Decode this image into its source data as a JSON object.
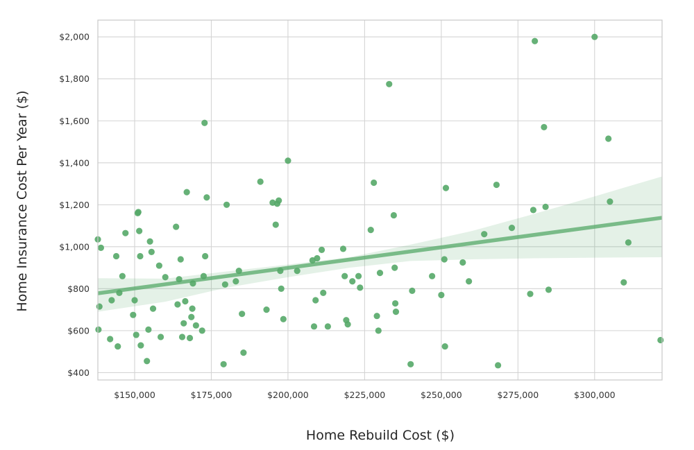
{
  "chart_data": {
    "type": "scatter",
    "title": "",
    "xlabel": "Home Rebuild Cost ($)",
    "ylabel": "Home Insurance Cost Per Year ($)",
    "xlim": [
      138000,
      322000
    ],
    "ylim": [
      365,
      2080
    ],
    "grid": true,
    "legend": "none",
    "x_ticks": [
      150000,
      175000,
      200000,
      225000,
      250000,
      275000,
      300000
    ],
    "x_tick_labels": [
      "$150,000",
      "$175,000",
      "$200,000",
      "$225,000",
      "$250,000",
      "$275,000",
      "$300,000"
    ],
    "y_ticks": [
      400,
      600,
      800,
      1000,
      1200,
      1400,
      1600,
      1800,
      2000
    ],
    "y_tick_labels": [
      "$400",
      "$600",
      "$800",
      "$1,000",
      "$1,200",
      "$1,400",
      "$1,600",
      "$1,800",
      "$2,000"
    ],
    "colors": {
      "point": "#55a868",
      "line": "#55a868",
      "band": "#55a868",
      "plot_background": "#ffffff",
      "grid": "#d4d4d4",
      "frame": "#c8c8c8"
    },
    "series": [
      {
        "type": "scatter",
        "points": [
          [
            138000,
            1035
          ],
          [
            138500,
            715
          ],
          [
            138200,
            605
          ],
          [
            139000,
            995
          ],
          [
            142000,
            560
          ],
          [
            142500,
            745
          ],
          [
            144000,
            955
          ],
          [
            144500,
            525
          ],
          [
            145000,
            780
          ],
          [
            146000,
            860
          ],
          [
            147000,
            1065
          ],
          [
            149500,
            675
          ],
          [
            150000,
            745
          ],
          [
            150500,
            580
          ],
          [
            151000,
            1160
          ],
          [
            151200,
            1165
          ],
          [
            151500,
            1075
          ],
          [
            151800,
            955
          ],
          [
            152000,
            530
          ],
          [
            154000,
            455
          ],
          [
            154500,
            605
          ],
          [
            155000,
            1025
          ],
          [
            155500,
            975
          ],
          [
            156000,
            705
          ],
          [
            158000,
            910
          ],
          [
            158500,
            570
          ],
          [
            160000,
            855
          ],
          [
            163500,
            1095
          ],
          [
            164000,
            725
          ],
          [
            164500,
            845
          ],
          [
            165000,
            940
          ],
          [
            165500,
            570
          ],
          [
            166000,
            635
          ],
          [
            166500,
            740
          ],
          [
            167000,
            1260
          ],
          [
            168000,
            565
          ],
          [
            168500,
            665
          ],
          [
            168800,
            705
          ],
          [
            169000,
            825
          ],
          [
            170000,
            625
          ],
          [
            172000,
            600
          ],
          [
            172500,
            860
          ],
          [
            173000,
            955
          ],
          [
            173500,
            1235
          ],
          [
            172800,
            1590
          ],
          [
            179000,
            440
          ],
          [
            179500,
            820
          ],
          [
            180000,
            1200
          ],
          [
            183000,
            835
          ],
          [
            184000,
            885
          ],
          [
            185000,
            680
          ],
          [
            185500,
            495
          ],
          [
            191000,
            1310
          ],
          [
            193000,
            700
          ],
          [
            195000,
            1210
          ],
          [
            196000,
            1105
          ],
          [
            196500,
            1205
          ],
          [
            197000,
            1220
          ],
          [
            197500,
            885
          ],
          [
            197800,
            800
          ],
          [
            198500,
            655
          ],
          [
            200000,
            1410
          ],
          [
            203000,
            885
          ],
          [
            208000,
            935
          ],
          [
            208500,
            620
          ],
          [
            209000,
            745
          ],
          [
            209500,
            945
          ],
          [
            211000,
            985
          ],
          [
            211500,
            780
          ],
          [
            213000,
            620
          ],
          [
            218000,
            990
          ],
          [
            218500,
            860
          ],
          [
            219000,
            650
          ],
          [
            219500,
            630
          ],
          [
            221000,
            835
          ],
          [
            223000,
            860
          ],
          [
            223500,
            805
          ],
          [
            227000,
            1080
          ],
          [
            228000,
            1305
          ],
          [
            229000,
            670
          ],
          [
            229500,
            600
          ],
          [
            230000,
            875
          ],
          [
            233000,
            1775
          ],
          [
            234500,
            1150
          ],
          [
            234800,
            900
          ],
          [
            235000,
            730
          ],
          [
            235200,
            690
          ],
          [
            240000,
            440
          ],
          [
            240500,
            790
          ],
          [
            247000,
            860
          ],
          [
            250000,
            770
          ],
          [
            251000,
            940
          ],
          [
            251200,
            525
          ],
          [
            251500,
            1280
          ],
          [
            257000,
            925
          ],
          [
            259000,
            835
          ],
          [
            264000,
            1060
          ],
          [
            268000,
            1295
          ],
          [
            268500,
            435
          ],
          [
            273000,
            1090
          ],
          [
            279000,
            775
          ],
          [
            280000,
            1175
          ],
          [
            280500,
            1980
          ],
          [
            283500,
            1570
          ],
          [
            284000,
            1190
          ],
          [
            285000,
            795
          ],
          [
            300000,
            2000
          ],
          [
            304500,
            1515
          ],
          [
            305000,
            1215
          ],
          [
            309500,
            830
          ],
          [
            311000,
            1020
          ],
          [
            321500,
            555
          ]
        ]
      },
      {
        "type": "regression",
        "points": [
          [
            138000,
            778
          ],
          [
            322000,
            1138
          ]
        ]
      },
      {
        "type": "confidence-band",
        "upper": [
          [
            138000,
            850
          ],
          [
            160000,
            848
          ],
          [
            180000,
            882
          ],
          [
            200000,
            915
          ],
          [
            220000,
            950
          ],
          [
            240000,
            1010
          ],
          [
            260000,
            1075
          ],
          [
            280000,
            1155
          ],
          [
            300000,
            1240
          ],
          [
            322000,
            1335
          ]
        ],
        "lower": [
          [
            138000,
            690
          ],
          [
            160000,
            738
          ],
          [
            180000,
            805
          ],
          [
            200000,
            855
          ],
          [
            220000,
            900
          ],
          [
            240000,
            932
          ],
          [
            260000,
            940
          ],
          [
            280000,
            945
          ],
          [
            300000,
            948
          ],
          [
            322000,
            950
          ]
        ]
      }
    ]
  }
}
